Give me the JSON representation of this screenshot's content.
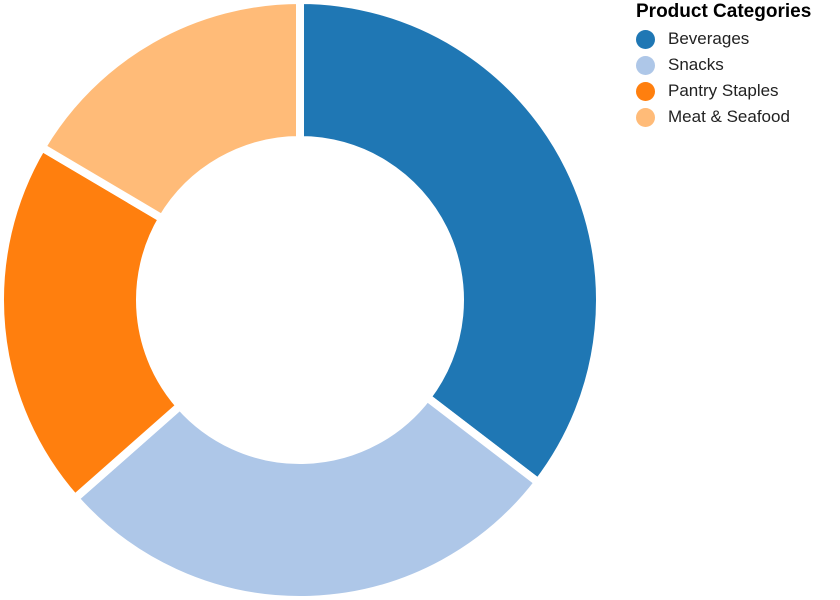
{
  "chart_data": {
    "type": "pie",
    "donut": true,
    "legend_title": "Product Categories",
    "legend_position": "top-right",
    "categories": [
      "Beverages",
      "Snacks",
      "Pantry Staples",
      "Meat & Seafood"
    ],
    "values": [
      35.4,
      28.1,
      20.0,
      16.5
    ],
    "colors": [
      "#1f77b4",
      "#aec7e8",
      "#ff7f0e",
      "#ffbb78"
    ],
    "title": "",
    "xlabel": "",
    "ylabel": ""
  }
}
